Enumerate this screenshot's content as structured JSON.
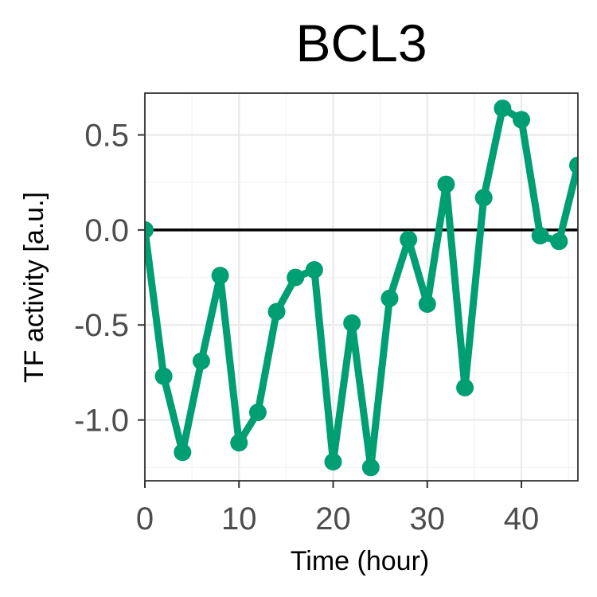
{
  "chart_data": {
    "type": "line",
    "title": "BCL3",
    "xlabel": "Time (hour)",
    "ylabel": "TF activity [a.u.]",
    "xlim": [
      0,
      46
    ],
    "ylim": [
      -1.32,
      0.72
    ],
    "xticks": [
      0,
      10,
      20,
      30,
      40
    ],
    "xtick_labels": [
      "0",
      "10",
      "20",
      "30",
      "40"
    ],
    "yticks": [
      0.5,
      0.0,
      -0.5,
      -1.0
    ],
    "ytick_labels": [
      "0.5",
      "0.0",
      "-0.5",
      "-1.0"
    ],
    "hline": 0,
    "grid": true,
    "legend": "none",
    "series": [
      {
        "color": "#009E73",
        "x": [
          0,
          2,
          4,
          6,
          8,
          10,
          12,
          14,
          16,
          18,
          20,
          22,
          24,
          26,
          28,
          30,
          32,
          34,
          36,
          38,
          40,
          42,
          44,
          46
        ],
        "y": [
          0.0,
          -0.77,
          -1.17,
          -0.69,
          -0.24,
          -1.12,
          -0.96,
          -0.43,
          -0.25,
          -0.21,
          -1.22,
          -0.49,
          -1.25,
          -0.36,
          -0.05,
          -0.39,
          0.24,
          -0.83,
          0.17,
          0.64,
          0.58,
          -0.03,
          -0.06,
          0.34
        ]
      }
    ]
  }
}
